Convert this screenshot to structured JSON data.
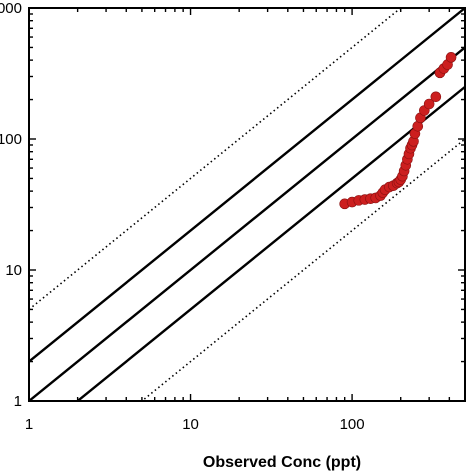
{
  "chart_data": {
    "type": "scatter",
    "title": "",
    "xlabel": "Observed Conc (ppt)",
    "ylabel": "",
    "x_scale": "log",
    "y_scale": "log",
    "xlim": [
      1,
      500
    ],
    "ylim": [
      1,
      1000
    ],
    "grid": false,
    "x_tick_labels": [
      "1",
      "10",
      "100"
    ],
    "y_tick_labels": [
      "1",
      "10",
      "100",
      "1000"
    ],
    "marker_color": "#cc1f1f",
    "reference_lines": [
      {
        "name": "1:2",
        "factor": 0.5,
        "style": "solid"
      },
      {
        "name": "1:1",
        "factor": 1,
        "style": "solid"
      },
      {
        "name": "2:1",
        "factor": 2,
        "style": "solid"
      },
      {
        "name": "1:5",
        "factor": 0.2,
        "style": "dotted"
      },
      {
        "name": "5:1",
        "factor": 5,
        "style": "dotted"
      }
    ],
    "series": [
      {
        "x": [
          90,
          100,
          110,
          120,
          130,
          140,
          150,
          155,
          160,
          170,
          180,
          190,
          195,
          200,
          205,
          210,
          215,
          220,
          225,
          230,
          235,
          240,
          245,
          255,
          265,
          280,
          300,
          330,
          350,
          370,
          390,
          410
        ],
        "y": [
          32,
          33,
          34,
          34.5,
          35,
          35.5,
          37,
          39,
          41,
          43,
          44,
          46,
          47,
          49,
          52,
          57,
          63,
          70,
          77,
          85,
          90,
          96,
          110,
          125,
          145,
          165,
          185,
          210,
          320,
          345,
          370,
          420
        ]
      }
    ]
  }
}
